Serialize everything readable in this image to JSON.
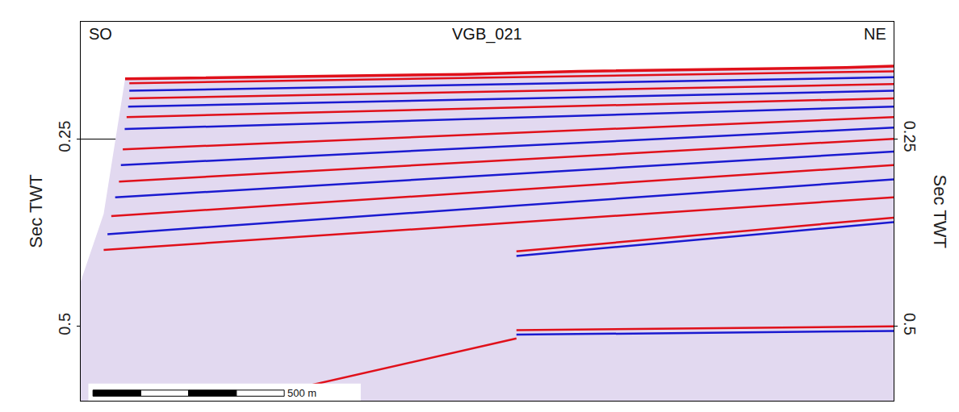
{
  "chart_data": {
    "type": "seismic_section",
    "title": "VGB_021",
    "left_label": "SO",
    "right_label": "NE",
    "y_title": "Sec TWT",
    "xlim": [
      0,
      2125
    ],
    "ylim": [
      0.094,
      0.599
    ],
    "yticks": [
      0.25,
      0.5
    ],
    "grid": true,
    "tick_labels": "y",
    "scale_bar": {
      "length": 500,
      "start": 32,
      "label": "500 m"
    },
    "coverage": {
      "color": "#e2d9f0",
      "x": [
        116,
        1000,
        1300,
        2000,
        2125,
        2125,
        0,
        0,
        60,
        116
      ],
      "t": [
        0.17,
        0.164,
        0.16,
        0.155,
        0.153,
        0.599,
        0.599,
        0.44,
        0.35,
        0.17
      ]
    },
    "seafloor": {
      "color": "#e0101a",
      "x": [
        116,
        1000,
        1300,
        2000,
        2125
      ],
      "t": [
        0.17,
        0.164,
        0.16,
        0.155,
        0.153
      ]
    },
    "horizons": [
      {
        "color": "#e0101a",
        "x": [
          127,
          2125
        ],
        "t": [
          0.176,
          0.16
        ]
      },
      {
        "color": "#1a1ad0",
        "x": [
          127,
          2125
        ],
        "t": [
          0.186,
          0.168
        ]
      },
      {
        "color": "#e0101a",
        "x": [
          127,
          2125
        ],
        "t": [
          0.196,
          0.177
        ]
      },
      {
        "color": "#1a1ad0",
        "x": [
          124,
          2125
        ],
        "t": [
          0.207,
          0.186
        ]
      },
      {
        "color": "#e0101a",
        "x": [
          120,
          2125
        ],
        "t": [
          0.221,
          0.196
        ]
      },
      {
        "color": "#1a1ad0",
        "x": [
          115,
          2125
        ],
        "t": [
          0.237,
          0.207
        ]
      },
      {
        "color": "#e0101a",
        "x": [
          110,
          2125
        ],
        "t": [
          0.264,
          0.221
        ]
      },
      {
        "color": "#1a1ad0",
        "x": [
          105,
          2125
        ],
        "t": [
          0.285,
          0.235
        ]
      },
      {
        "color": "#e0101a",
        "x": [
          100,
          2125
        ],
        "t": [
          0.307,
          0.25
        ]
      },
      {
        "color": "#1a1ad0",
        "x": [
          90,
          2125
        ],
        "t": [
          0.328,
          0.267
        ]
      },
      {
        "color": "#e0101a",
        "x": [
          80,
          2125
        ],
        "t": [
          0.353,
          0.285
        ]
      },
      {
        "color": "#1a1ad0",
        "x": [
          70,
          2125
        ],
        "t": [
          0.377,
          0.304
        ]
      },
      {
        "color": "#e0101a",
        "x": [
          60,
          2125
        ],
        "t": [
          0.398,
          0.328
        ]
      },
      {
        "color": "#e0101a",
        "x": [
          1139,
          2125
        ],
        "t": [
          0.4,
          0.355
        ]
      },
      {
        "color": "#1a1ad0",
        "x": [
          1139,
          2125
        ],
        "t": [
          0.406,
          0.361
        ]
      },
      {
        "color": "#e0101a",
        "x": [
          422,
          1139
        ],
        "t": [
          0.599,
          0.516
        ]
      },
      {
        "color": "#e0101a",
        "x": [
          1139,
          2125
        ],
        "t": [
          0.505,
          0.5
        ]
      },
      {
        "color": "#1a1ad0",
        "x": [
          1139,
          2125
        ],
        "t": [
          0.511,
          0.506
        ]
      }
    ]
  }
}
